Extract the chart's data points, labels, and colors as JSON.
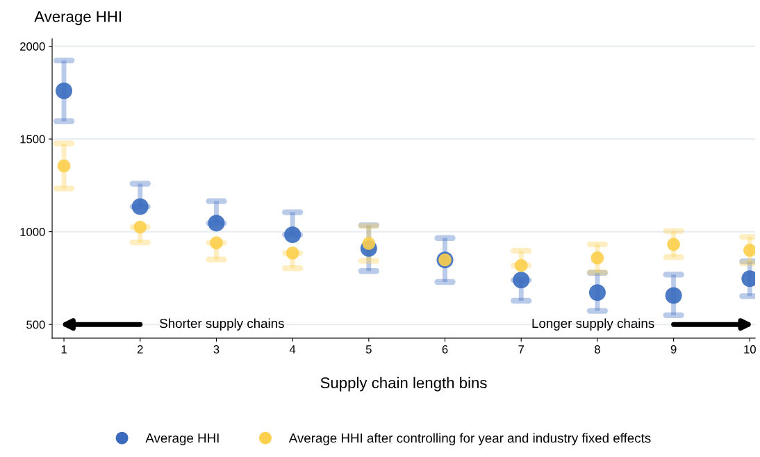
{
  "chart_data": {
    "type": "scatter",
    "xlabel": "Supply chain length bins",
    "ylabel": "Average HHI",
    "categories": [
      "1",
      "2",
      "3",
      "4",
      "5",
      "6",
      "7",
      "8",
      "9",
      "10"
    ],
    "series": [
      {
        "name": "Average HHI",
        "color": "#3a6bbf",
        "values": [
          1760,
          1135,
          1046,
          984,
          910,
          848,
          739,
          672,
          656,
          747
        ],
        "errors": [
          [
            1596,
            1923
          ],
          [
            1135,
            1259
          ],
          [
            1046,
            1165
          ],
          [
            984,
            1105
          ],
          [
            788,
            1035
          ],
          [
            729,
            966
          ],
          [
            628,
            739
          ],
          [
            573,
            778
          ],
          [
            550,
            769
          ],
          [
            653,
            840
          ]
        ]
      },
      {
        "name": "Average HHI after controlling for year and industry fixed effects",
        "color": "#fccf4d",
        "values": [
          1355,
          1025,
          940,
          885,
          937,
          848,
          818,
          859,
          932,
          900
        ],
        "errors": [
          [
            1233,
            1476
          ],
          [
            942,
            1025
          ],
          [
            850,
            940
          ],
          [
            803,
            885
          ],
          [
            843,
            1031
          ],
          null,
          [
            818,
            897
          ],
          [
            781,
            932
          ],
          [
            863,
            1004
          ],
          [
            830,
            972
          ]
        ]
      }
    ],
    "ylim": [
      426,
      2040
    ],
    "yticks": [
      500,
      1000,
      1500,
      2000
    ],
    "grid": "y",
    "legend": "bottom",
    "marker": "circle",
    "annotations": [
      "Shorter supply chains",
      "Longer supply chains"
    ]
  }
}
